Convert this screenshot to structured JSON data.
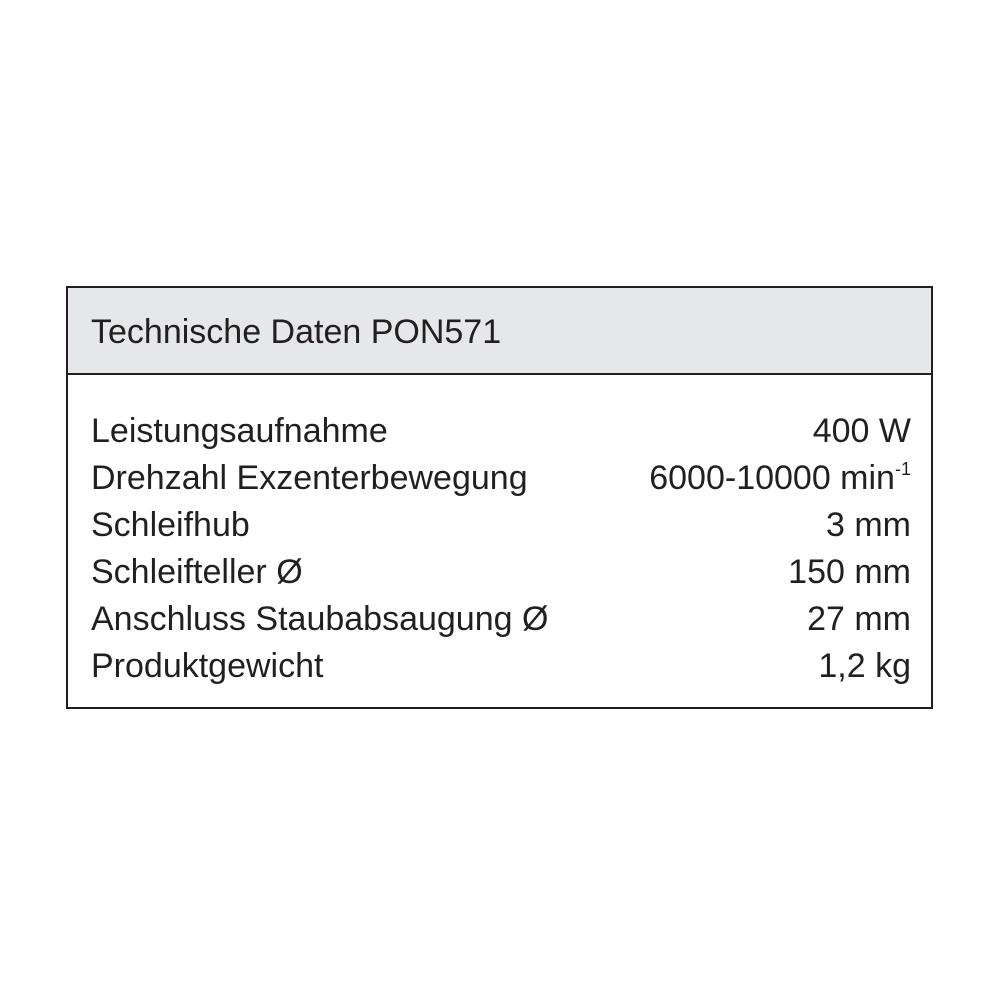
{
  "title": "Technische Daten PON571",
  "rows": [
    {
      "label": "Leistungsaufnahme",
      "value": "400 W"
    },
    {
      "label": "Drehzahl Exzenterbewegung",
      "value": "6000-10000 min",
      "sup": "-1"
    },
    {
      "label": "Schleifhub",
      "value": "3 mm"
    },
    {
      "label": "Schleifteller Ø",
      "value": "150 mm"
    },
    {
      "label": "Anschluss Staubabsaugung Ø",
      "value": "27 mm"
    },
    {
      "label": "Produktgewicht",
      "value": "1,2 kg"
    }
  ]
}
